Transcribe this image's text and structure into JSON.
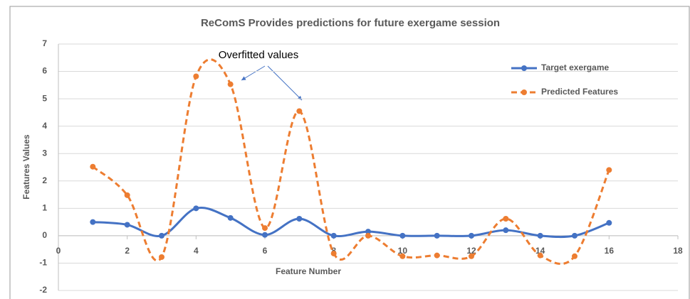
{
  "chart_data": {
    "type": "line",
    "title": "ReComS Provides predictions for future exergame session",
    "x_label": "Feature Number",
    "y_label": "Features Values",
    "annotation": "Overfitted values",
    "x": [
      1,
      2,
      3,
      4,
      5,
      6,
      7,
      8,
      9,
      10,
      11,
      12,
      13,
      14,
      15,
      16
    ],
    "series": [
      {
        "name": "Target exergame",
        "color": "#4472c4",
        "dashed": false,
        "values": [
          0.5,
          0.4,
          0,
          1.0,
          0.65,
          0.03,
          0.62,
          0,
          0.15,
          0,
          0,
          0,
          0.2,
          0,
          0,
          0.47
        ]
      },
      {
        "name": "Predicted Features",
        "color": "#ed7d31",
        "dashed": true,
        "values": [
          2.52,
          1.48,
          -0.78,
          5.82,
          5.53,
          0.28,
          4.55,
          -0.65,
          0,
          -0.75,
          -0.72,
          -0.75,
          0.62,
          -0.72,
          -0.75,
          2.4
        ]
      }
    ],
    "xlim": [
      0,
      18
    ],
    "xticks": [
      0,
      2,
      4,
      6,
      8,
      10,
      12,
      14,
      16,
      18
    ],
    "ylim": [
      -2,
      7
    ],
    "yticks": [
      -2,
      -1,
      0,
      1,
      2,
      3,
      4,
      5,
      6,
      7
    ],
    "grid": true,
    "smooth": true,
    "legend": "upper right"
  }
}
